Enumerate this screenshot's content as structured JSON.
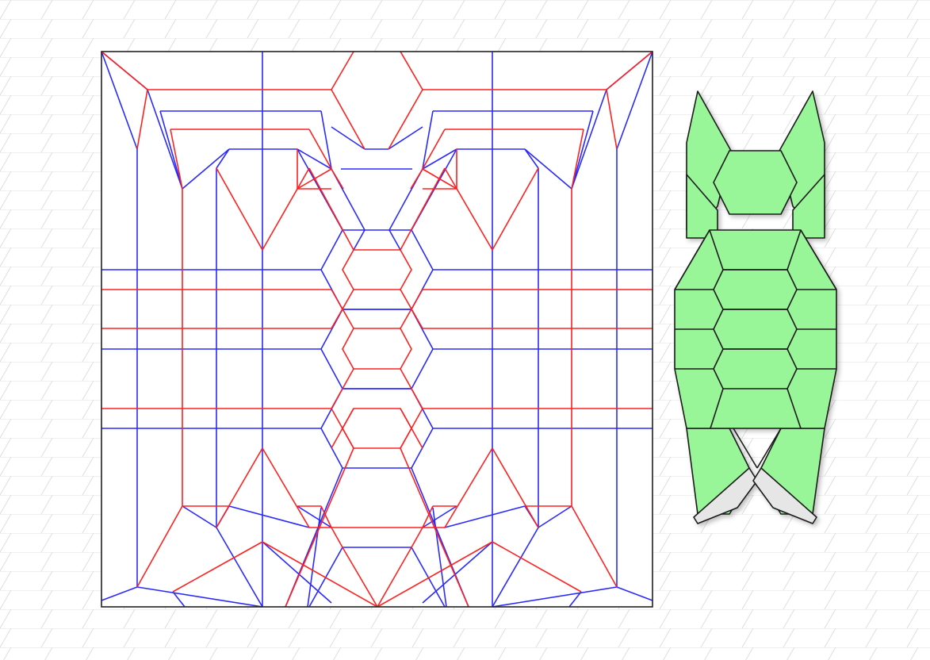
{
  "canvas": {
    "background": "#ffffff",
    "grid_color": "#dcdcdc"
  },
  "crease_pattern": {
    "mountain_color": "#ff2020",
    "valley_color": "#2a2aff",
    "border_color": "#222222"
  },
  "folded_model": {
    "fill_color": "#98f598",
    "back_fill_color": "#e6e6e6",
    "edge_color": "#1a1a1a"
  }
}
